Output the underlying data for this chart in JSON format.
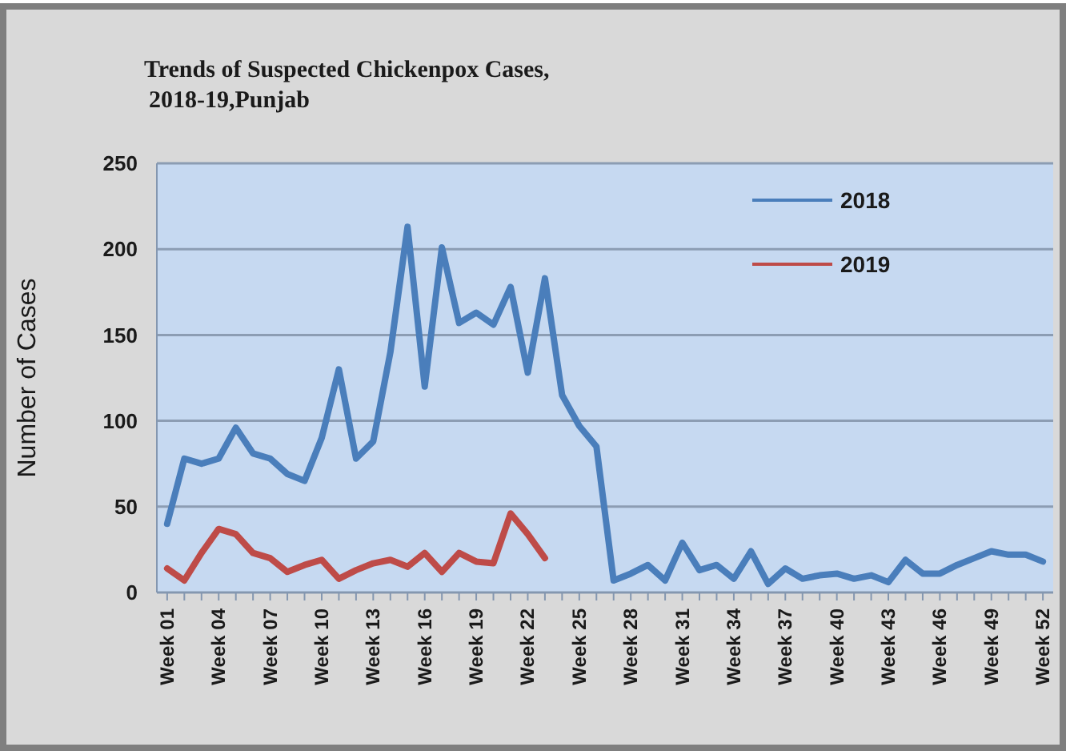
{
  "chart_data": {
    "type": "line",
    "title": "Trends of Suspected Chickenpox Cases,2018-19,Punjab",
    "ylabel": "Number of Cases",
    "categories": [
      "Week 01",
      null,
      null,
      "Week 04",
      null,
      null,
      "Week 07",
      null,
      null,
      "Week 10",
      null,
      null,
      "Week 13",
      null,
      null,
      "Week 16",
      null,
      null,
      "Week 19",
      null,
      null,
      "Week 22",
      null,
      null,
      "Week 25",
      null,
      null,
      "Week 28",
      null,
      null,
      "Week 31",
      null,
      null,
      "Week 34",
      null,
      null,
      "Week 37",
      null,
      null,
      "Week 40",
      null,
      null,
      "Week 43",
      null,
      null,
      "Week 46",
      null,
      null,
      "Week 49",
      null,
      null,
      "Week 52"
    ],
    "series": [
      {
        "name": "2018",
        "color": "#4a7ebb",
        "values": [
          40,
          78,
          75,
          78,
          96,
          81,
          78,
          69,
          65,
          90,
          130,
          78,
          88,
          140,
          213,
          120,
          201,
          157,
          163,
          156,
          178,
          128,
          183,
          115,
          97,
          85,
          7,
          11,
          16,
          7,
          29,
          13,
          16,
          8,
          24,
          5,
          14,
          8,
          10,
          11,
          8,
          10,
          6,
          19,
          11,
          11,
          16,
          20,
          24,
          22,
          22,
          18
        ]
      },
      {
        "name": "2019",
        "color": "#be4b48",
        "values": [
          14,
          7,
          23,
          37,
          34,
          23,
          20,
          12,
          16,
          19,
          8,
          13,
          17,
          19,
          15,
          23,
          12,
          23,
          18,
          17,
          46,
          34,
          20,
          null,
          null,
          null,
          null,
          null,
          null,
          null,
          null,
          null,
          null,
          null,
          null,
          null,
          null,
          null,
          null,
          null,
          null,
          null,
          null,
          null,
          null,
          null,
          null,
          null,
          null,
          null,
          null,
          null
        ]
      }
    ],
    "ylim": [
      0,
      250
    ],
    "yticks": [
      0,
      50,
      100,
      150,
      200,
      250
    ],
    "grid": "y",
    "legend": "top right",
    "marker": "none",
    "line_style": "solid"
  }
}
